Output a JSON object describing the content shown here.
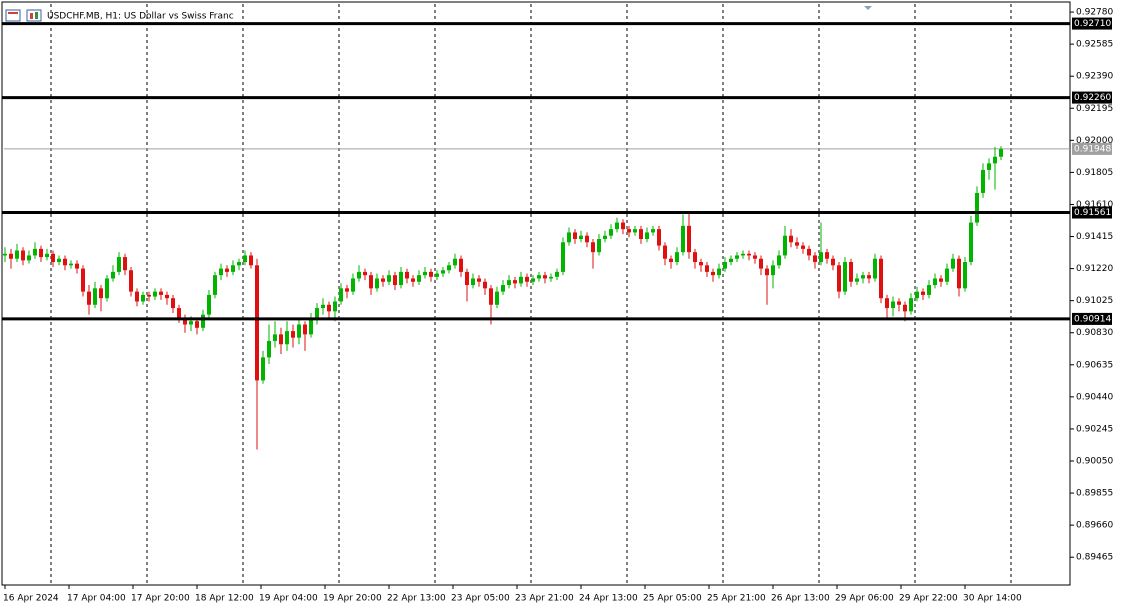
{
  "chart_data": {
    "type": "candlestick",
    "title": "USDCHF.MB, H1:  US Dollar vs Swiss Franc",
    "x_labels": [
      "16 Apr 2024",
      "17 Apr 04:00",
      "17 Apr 20:00",
      "18 Apr 12:00",
      "19 Apr 04:00",
      "19 Apr 20:00",
      "22 Apr 13:00",
      "23 Apr 05:00",
      "23 Apr 21:00",
      "24 Apr 13:00",
      "25 Apr 05:00",
      "25 Apr 21:00",
      "26 Apr 13:00",
      "29 Apr 06:00",
      "29 Apr 22:00",
      "30 Apr 14:00"
    ],
    "ylim": [
      0.89296,
      0.92829
    ],
    "yticks": [
      {
        "value": 0.9278,
        "label": "0.92780"
      },
      0.92585,
      {
        "value": 0.9239,
        "label": "0.92390"
      },
      0.92195,
      {
        "value": 0.92,
        "label": "0.92000"
      },
      0.91805,
      {
        "value": 0.9161,
        "label": "0.91610"
      },
      0.91415,
      {
        "value": 0.9122,
        "label": "0.91220"
      },
      0.91025,
      {
        "value": 0.9083,
        "label": "0.90830"
      },
      0.90635,
      {
        "value": 0.9044,
        "label": "0.90440"
      },
      0.90245,
      {
        "value": 0.9005,
        "label": "0.90050"
      },
      0.89855,
      {
        "value": 0.8966,
        "label": "0.89660"
      },
      0.89465
    ],
    "levels": [
      {
        "value": 0.9271,
        "label": "0.92710"
      },
      {
        "value": 0.9226,
        "label": "0.92260"
      },
      0.91561,
      0.90914
    ],
    "current_price": 0.91948,
    "up_color": "#00b400",
    "down_color": "#e01010",
    "ohlc": [
      [
        0.913,
        0.9135,
        0.9126,
        0.9131
      ],
      [
        0.9131,
        0.9134,
        0.9122,
        0.9128
      ],
      [
        0.9128,
        0.9137,
        0.9126,
        0.9133
      ],
      [
        0.9133,
        0.9135,
        0.9124,
        0.9127
      ],
      [
        0.9127,
        0.9133,
        0.9125,
        0.913
      ],
      [
        0.913,
        0.9138,
        0.9128,
        0.9134
      ],
      [
        0.9134,
        0.9136,
        0.9126,
        0.9129
      ],
      [
        0.9129,
        0.9134,
        0.9127,
        0.9131
      ],
      [
        0.9131,
        0.9133,
        0.9123,
        0.9126
      ],
      [
        0.9126,
        0.913,
        0.9124,
        0.9128
      ],
      [
        0.9128,
        0.913,
        0.9121,
        0.9124
      ],
      [
        0.9124,
        0.9127,
        0.9122,
        0.9125
      ],
      [
        0.9125,
        0.9127,
        0.9119,
        0.9122
      ],
      [
        0.9122,
        0.9124,
        0.9105,
        0.9108
      ],
      [
        0.9108,
        0.9112,
        0.9094,
        0.91
      ],
      [
        0.91,
        0.9114,
        0.9098,
        0.911
      ],
      [
        0.911,
        0.9112,
        0.9096,
        0.9104
      ],
      [
        0.9104,
        0.9118,
        0.9102,
        0.9116
      ],
      [
        0.9116,
        0.9124,
        0.9114,
        0.912
      ],
      [
        0.912,
        0.9132,
        0.9118,
        0.9129
      ],
      [
        0.9129,
        0.9131,
        0.9118,
        0.9121
      ],
      [
        0.9121,
        0.9123,
        0.9105,
        0.9108
      ],
      [
        0.9108,
        0.911,
        0.9099,
        0.9102
      ],
      [
        0.9102,
        0.9108,
        0.91,
        0.9106
      ],
      [
        0.9106,
        0.9108,
        0.9102,
        0.9105
      ],
      [
        0.9105,
        0.911,
        0.9103,
        0.9108
      ],
      [
        0.9108,
        0.911,
        0.9103,
        0.9106
      ],
      [
        0.9106,
        0.9108,
        0.91,
        0.9104
      ],
      [
        0.9104,
        0.9106,
        0.9095,
        0.9098
      ],
      [
        0.9098,
        0.91,
        0.9089,
        0.9092
      ],
      [
        0.9092,
        0.9094,
        0.9083,
        0.9088
      ],
      [
        0.9088,
        0.9093,
        0.9084,
        0.909
      ],
      [
        0.909,
        0.9092,
        0.9082,
        0.9086
      ],
      [
        0.9086,
        0.9097,
        0.9084,
        0.9094
      ],
      [
        0.9094,
        0.9109,
        0.9092,
        0.9106
      ],
      [
        0.9106,
        0.912,
        0.9104,
        0.9118
      ],
      [
        0.9118,
        0.9125,
        0.9115,
        0.9122
      ],
      [
        0.9122,
        0.9124,
        0.9117,
        0.912
      ],
      [
        0.912,
        0.9127,
        0.9118,
        0.9124
      ],
      [
        0.9124,
        0.9128,
        0.9121,
        0.9126
      ],
      [
        0.9126,
        0.9133,
        0.9124,
        0.913
      ],
      [
        0.913,
        0.9132,
        0.9122,
        0.9124
      ],
      [
        0.9124,
        0.9128,
        0.9012,
        0.9054
      ],
      [
        0.9054,
        0.9072,
        0.9052,
        0.9068
      ],
      [
        0.9068,
        0.9088,
        0.9064,
        0.9078
      ],
      [
        0.9078,
        0.909,
        0.9074,
        0.9082
      ],
      [
        0.9082,
        0.9086,
        0.907,
        0.9076
      ],
      [
        0.9076,
        0.909,
        0.9072,
        0.9084
      ],
      [
        0.9084,
        0.9088,
        0.9074,
        0.908
      ],
      [
        0.908,
        0.9092,
        0.9076,
        0.9088
      ],
      [
        0.9088,
        0.909,
        0.9072,
        0.9082
      ],
      [
        0.9082,
        0.9095,
        0.908,
        0.9092
      ],
      [
        0.9092,
        0.9101,
        0.9088,
        0.9098
      ],
      [
        0.9098,
        0.9104,
        0.9094,
        0.91
      ],
      [
        0.91,
        0.9102,
        0.9092,
        0.9096
      ],
      [
        0.9096,
        0.9105,
        0.909,
        0.9102
      ],
      [
        0.9102,
        0.9113,
        0.91,
        0.911
      ],
      [
        0.911,
        0.9112,
        0.9104,
        0.9108
      ],
      [
        0.9108,
        0.9119,
        0.9106,
        0.9116
      ],
      [
        0.9116,
        0.9124,
        0.9114,
        0.912
      ],
      [
        0.912,
        0.9122,
        0.9115,
        0.9118
      ],
      [
        0.9118,
        0.912,
        0.9106,
        0.911
      ],
      [
        0.911,
        0.9119,
        0.9108,
        0.9116
      ],
      [
        0.9116,
        0.9118,
        0.9111,
        0.9114
      ],
      [
        0.9114,
        0.9121,
        0.9112,
        0.9118
      ],
      [
        0.9118,
        0.912,
        0.9109,
        0.9112
      ],
      [
        0.9112,
        0.9123,
        0.911,
        0.912
      ],
      [
        0.912,
        0.9122,
        0.9113,
        0.9116
      ],
      [
        0.9116,
        0.9118,
        0.9111,
        0.9114
      ],
      [
        0.9114,
        0.9121,
        0.9112,
        0.9118
      ],
      [
        0.9118,
        0.9123,
        0.9116,
        0.912
      ],
      [
        0.912,
        0.9122,
        0.9114,
        0.9117
      ],
      [
        0.9117,
        0.9121,
        0.9115,
        0.9119
      ],
      [
        0.9119,
        0.9123,
        0.9117,
        0.9121
      ],
      [
        0.9121,
        0.9126,
        0.9119,
        0.9124
      ],
      [
        0.9124,
        0.9131,
        0.9122,
        0.9128
      ],
      [
        0.9128,
        0.913,
        0.9117,
        0.912
      ],
      [
        0.912,
        0.9122,
        0.9102,
        0.9112
      ],
      [
        0.9112,
        0.9119,
        0.911,
        0.9116
      ],
      [
        0.9116,
        0.9118,
        0.9111,
        0.9114
      ],
      [
        0.9114,
        0.9116,
        0.9106,
        0.911
      ],
      [
        0.911,
        0.9112,
        0.9088,
        0.91
      ],
      [
        0.91,
        0.9111,
        0.9098,
        0.9108
      ],
      [
        0.9108,
        0.9115,
        0.9106,
        0.9112
      ],
      [
        0.9112,
        0.9118,
        0.911,
        0.9115
      ],
      [
        0.9115,
        0.9117,
        0.911,
        0.9113
      ],
      [
        0.9113,
        0.912,
        0.9111,
        0.9117
      ],
      [
        0.9117,
        0.9119,
        0.9111,
        0.9114
      ],
      [
        0.9114,
        0.9118,
        0.9112,
        0.9116
      ],
      [
        0.9116,
        0.912,
        0.9114,
        0.9118
      ],
      [
        0.9118,
        0.912,
        0.9113,
        0.9116
      ],
      [
        0.9116,
        0.9119,
        0.9114,
        0.9117
      ],
      [
        0.9117,
        0.9122,
        0.9115,
        0.912
      ],
      [
        0.912,
        0.9141,
        0.9118,
        0.9138
      ],
      [
        0.9138,
        0.9147,
        0.9136,
        0.9144
      ],
      [
        0.9144,
        0.9146,
        0.9137,
        0.914
      ],
      [
        0.914,
        0.9145,
        0.9138,
        0.9142
      ],
      [
        0.9142,
        0.9144,
        0.9135,
        0.9138
      ],
      [
        0.9138,
        0.914,
        0.9122,
        0.9132
      ],
      [
        0.9132,
        0.9143,
        0.913,
        0.914
      ],
      [
        0.914,
        0.9145,
        0.9138,
        0.9142
      ],
      [
        0.9142,
        0.9149,
        0.914,
        0.9146
      ],
      [
        0.9146,
        0.9153,
        0.9144,
        0.915
      ],
      [
        0.915,
        0.9152,
        0.9143,
        0.9146
      ],
      [
        0.9146,
        0.9148,
        0.9141,
        0.9144
      ],
      [
        0.9144,
        0.9148,
        0.9142,
        0.9146
      ],
      [
        0.9146,
        0.9148,
        0.9137,
        0.914
      ],
      [
        0.914,
        0.9147,
        0.9138,
        0.9144
      ],
      [
        0.9144,
        0.9148,
        0.9142,
        0.9146
      ],
      [
        0.9146,
        0.9148,
        0.9133,
        0.9136
      ],
      [
        0.9136,
        0.9138,
        0.9124,
        0.9128
      ],
      [
        0.9128,
        0.913,
        0.9122,
        0.9126
      ],
      [
        0.9126,
        0.9135,
        0.9124,
        0.9132
      ],
      [
        0.9132,
        0.9155,
        0.913,
        0.9148
      ],
      [
        0.9148,
        0.9156,
        0.9128,
        0.9132
      ],
      [
        0.9132,
        0.9134,
        0.9122,
        0.9126
      ],
      [
        0.9126,
        0.9128,
        0.912,
        0.9124
      ],
      [
        0.9124,
        0.9126,
        0.9117,
        0.912
      ],
      [
        0.912,
        0.9122,
        0.9114,
        0.9118
      ],
      [
        0.9118,
        0.9125,
        0.9116,
        0.9122
      ],
      [
        0.9122,
        0.9129,
        0.912,
        0.9126
      ],
      [
        0.9126,
        0.913,
        0.9124,
        0.9128
      ],
      [
        0.9128,
        0.9132,
        0.9126,
        0.913
      ],
      [
        0.913,
        0.9133,
        0.9128,
        0.9131
      ],
      [
        0.9131,
        0.9133,
        0.9127,
        0.913
      ],
      [
        0.913,
        0.9132,
        0.9125,
        0.9128
      ],
      [
        0.9128,
        0.913,
        0.9118,
        0.9122
      ],
      [
        0.9122,
        0.9124,
        0.91,
        0.9118
      ],
      [
        0.9118,
        0.9127,
        0.911,
        0.9124
      ],
      [
        0.9124,
        0.9133,
        0.9122,
        0.913
      ],
      [
        0.913,
        0.9148,
        0.9128,
        0.9142
      ],
      [
        0.9142,
        0.9146,
        0.9135,
        0.9138
      ],
      [
        0.9138,
        0.9141,
        0.9134,
        0.9136
      ],
      [
        0.9136,
        0.9138,
        0.9131,
        0.9134
      ],
      [
        0.9134,
        0.9136,
        0.9127,
        0.913
      ],
      [
        0.913,
        0.9132,
        0.9122,
        0.9126
      ],
      [
        0.9126,
        0.915,
        0.9124,
        0.9132
      ],
      [
        0.9132,
        0.9134,
        0.9125,
        0.9128
      ],
      [
        0.9128,
        0.913,
        0.9121,
        0.9124
      ],
      [
        0.9124,
        0.9126,
        0.9104,
        0.9108
      ],
      [
        0.9108,
        0.9129,
        0.9106,
        0.9126
      ],
      [
        0.9126,
        0.9128,
        0.9111,
        0.9114
      ],
      [
        0.9114,
        0.9119,
        0.9112,
        0.9116
      ],
      [
        0.9116,
        0.912,
        0.9113,
        0.9118
      ],
      [
        0.9118,
        0.912,
        0.9113,
        0.9116
      ],
      [
        0.9116,
        0.9131,
        0.9114,
        0.9128
      ],
      [
        0.9128,
        0.913,
        0.9101,
        0.9104
      ],
      [
        0.9104,
        0.9106,
        0.9092,
        0.9098
      ],
      [
        0.9098,
        0.9105,
        0.9093,
        0.9102
      ],
      [
        0.9102,
        0.9104,
        0.9096,
        0.91
      ],
      [
        0.91,
        0.9102,
        0.909,
        0.9096
      ],
      [
        0.9096,
        0.9107,
        0.9094,
        0.9104
      ],
      [
        0.9104,
        0.9111,
        0.9102,
        0.9108
      ],
      [
        0.9108,
        0.911,
        0.9103,
        0.9106
      ],
      [
        0.9106,
        0.9115,
        0.9104,
        0.9112
      ],
      [
        0.9112,
        0.9119,
        0.911,
        0.9116
      ],
      [
        0.9116,
        0.9118,
        0.9111,
        0.9114
      ],
      [
        0.9114,
        0.9125,
        0.9112,
        0.9122
      ],
      [
        0.9122,
        0.9131,
        0.912,
        0.9128
      ],
      [
        0.9128,
        0.913,
        0.9105,
        0.911
      ],
      [
        0.911,
        0.9129,
        0.9108,
        0.9126
      ],
      [
        0.9126,
        0.9154,
        0.9124,
        0.915
      ],
      [
        0.915,
        0.9172,
        0.9148,
        0.9168
      ],
      [
        0.9168,
        0.9186,
        0.9165,
        0.9182
      ],
      [
        0.9182,
        0.9189,
        0.9176,
        0.9186
      ],
      [
        0.9186,
        0.9196,
        0.917,
        0.919
      ],
      [
        0.919,
        0.91965,
        0.9188,
        0.91948
      ]
    ]
  }
}
